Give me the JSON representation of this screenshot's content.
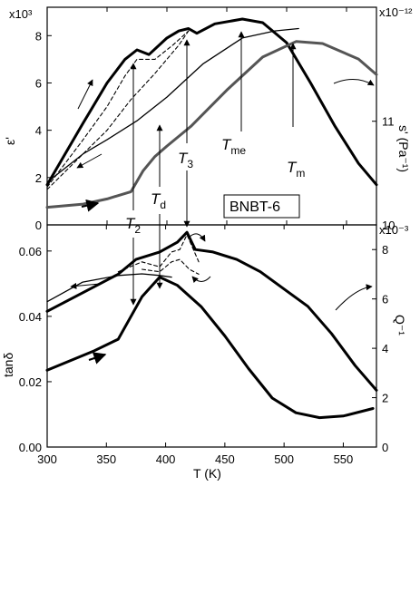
{
  "chart_data": [
    {
      "type": "line",
      "panel": "top",
      "title": "",
      "xlabel": "",
      "ylabel_left": "ε'",
      "ylabel_right": "s' (Pa⁻¹)",
      "y_left_multiplier": "x10³",
      "y_right_multiplier": "x10⁻¹²",
      "xlim": [
        300,
        575
      ],
      "ylim_left": [
        0,
        9.2
      ],
      "ylim_right": [
        10,
        12.1
      ],
      "x_ticks": [
        300,
        350,
        400,
        450,
        500,
        550
      ],
      "y_left_ticks": [
        "0",
        "2",
        "4",
        "6",
        "8"
      ],
      "y_right_ticks": [
        "10",
        "11"
      ],
      "sample_label": "BNBT-6",
      "annotations": [
        {
          "main": "T",
          "sub": "me",
          "x": 463
        },
        {
          "main": "T",
          "sub": "m",
          "x": 508
        },
        {
          "main": "T",
          "sub": "3",
          "x": 418
        }
      ],
      "series": [
        {
          "role": "ε' heating",
          "axis": "left",
          "style": "thick",
          "x": [
            300,
            330,
            350,
            365,
            375,
            385,
            400,
            410,
            418,
            425,
            440,
            463,
            480,
            500,
            520,
            540,
            560,
            575
          ],
          "y": [
            1.7,
            4.3,
            6.0,
            7.0,
            7.4,
            7.2,
            7.9,
            8.2,
            8.3,
            8.1,
            8.5,
            8.7,
            8.55,
            7.7,
            6.0,
            4.2,
            2.6,
            1.7
          ]
        },
        {
          "role": "ε' cooling (dashed)",
          "axis": "left",
          "style": "dashed",
          "x": [
            300,
            330,
            350,
            365,
            375,
            390,
            405,
            418
          ],
          "y": [
            1.6,
            3.6,
            5.0,
            6.3,
            7.0,
            7.0,
            7.6,
            8.2
          ]
        },
        {
          "role": "ε' cooling (dashed 2)",
          "axis": "left",
          "style": "dashed",
          "x": [
            300,
            330,
            350,
            370,
            390,
            410,
            418
          ],
          "y": [
            1.5,
            3.0,
            4.0,
            5.3,
            6.4,
            7.6,
            8.2
          ]
        },
        {
          "role": "ε' cooling",
          "axis": "left",
          "style": "thin",
          "x": [
            300,
            330,
            350,
            375,
            400,
            430,
            463,
            490,
            510
          ],
          "y": [
            1.8,
            3.0,
            3.6,
            4.4,
            5.4,
            6.8,
            7.9,
            8.2,
            8.3
          ]
        },
        {
          "role": "s' heating",
          "axis": "right",
          "style": "gray",
          "x": [
            300,
            330,
            350,
            370,
            380,
            390,
            400,
            420,
            450,
            480,
            508,
            530,
            560,
            575
          ],
          "y": [
            10.17,
            10.2,
            10.25,
            10.32,
            10.52,
            10.66,
            10.76,
            10.95,
            11.3,
            11.62,
            11.77,
            11.75,
            11.6,
            11.45
          ]
        }
      ]
    },
    {
      "type": "line",
      "panel": "bottom",
      "title": "",
      "xlabel": "T (K)",
      "ylabel_left": "tanδ",
      "ylabel_right": "Q⁻¹",
      "y_right_multiplier": "x10⁻³",
      "xlim": [
        300,
        578
      ],
      "ylim_left": [
        0,
        0.068
      ],
      "ylim_right": [
        0,
        9
      ],
      "x_ticks": [
        300,
        350,
        400,
        450,
        500,
        550
      ],
      "y_left_ticks": [
        "0.00",
        "0.02",
        "0.04",
        "0.06"
      ],
      "y_right_ticks": [
        "0",
        "2",
        "4",
        "6",
        "8"
      ],
      "annotations": [
        {
          "main": "T",
          "sub": "2",
          "x": 375
        },
        {
          "main": "T",
          "sub": "d",
          "x": 395
        }
      ],
      "series": [
        {
          "role": "Q⁻¹ heating",
          "axis": "right",
          "style": "thick",
          "x": [
            300,
            320,
            340,
            360,
            375,
            395,
            410,
            418,
            425,
            440,
            460,
            480,
            500,
            520,
            540,
            560,
            578
          ],
          "y": [
            5.5,
            6.0,
            6.5,
            7.0,
            7.6,
            7.9,
            8.3,
            8.7,
            8.0,
            7.9,
            7.6,
            7.1,
            6.4,
            5.7,
            4.6,
            3.3,
            2.3
          ]
        },
        {
          "role": "Q⁻¹ cooling (dashed)",
          "axis": "right",
          "style": "dashed",
          "x": [
            360,
            380,
            395,
            405,
            412,
            418,
            428
          ],
          "y": [
            7.1,
            7.5,
            7.3,
            7.9,
            8.0,
            8.6,
            7.5
          ]
        },
        {
          "role": "Q⁻¹ cooling (dashed 2)",
          "axis": "right",
          "style": "dashed",
          "x": [
            380,
            395,
            405,
            412,
            420,
            428
          ],
          "y": [
            7.2,
            7.1,
            7.5,
            7.6,
            7.2,
            7.0
          ]
        },
        {
          "role": "tanδ heating",
          "axis": "left",
          "style": "thick",
          "x": [
            300,
            320,
            340,
            360,
            370,
            380,
            395,
            410,
            430,
            450,
            470,
            490,
            510,
            530,
            550,
            575
          ],
          "y": [
            0.0235,
            0.0265,
            0.0295,
            0.033,
            0.0395,
            0.046,
            0.052,
            0.0495,
            0.043,
            0.034,
            0.024,
            0.015,
            0.0105,
            0.009,
            0.0095,
            0.0118
          ]
        },
        {
          "role": "tanδ cooling",
          "axis": "left",
          "style": "thin",
          "x": [
            300,
            330,
            360,
            380,
            395,
            405
          ],
          "y": [
            0.0445,
            0.0505,
            0.0525,
            0.053,
            0.0525,
            0.052
          ]
        }
      ]
    }
  ]
}
